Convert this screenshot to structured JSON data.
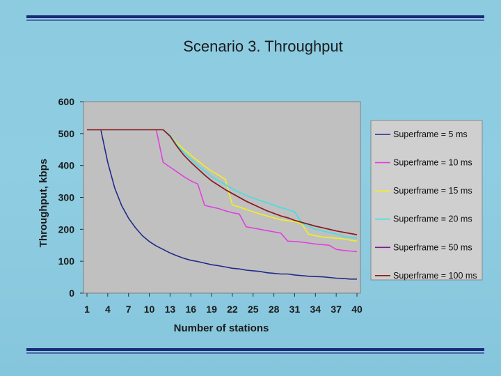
{
  "slide": {
    "title": "Scenario 3. Throughput"
  },
  "colors": {
    "bar": "#1b2a78",
    "plot_bg": "#c0c0c0",
    "legend_bg": "#cfcfcf"
  },
  "chart_data": {
    "type": "line",
    "title": "",
    "xlabel": "Number of stations",
    "ylabel": "Throughput, kbps",
    "xlim": [
      1,
      40
    ],
    "ylim": [
      0,
      600
    ],
    "yticks": [
      "0",
      "100",
      "200",
      "300",
      "400",
      "500",
      "600"
    ],
    "xticks": [
      "1",
      "4",
      "7",
      "10",
      "13",
      "16",
      "19",
      "22",
      "25",
      "28",
      "31",
      "34",
      "37",
      "40"
    ],
    "grid": false,
    "legend_position": "right",
    "series": [
      {
        "name": "Superframe = 5 ms",
        "color": "#1f2a8a",
        "x": [
          1,
          2,
          3,
          4,
          5,
          6,
          7,
          8,
          9,
          10,
          11,
          12,
          13,
          14,
          15,
          16,
          17,
          18,
          19,
          20,
          21,
          22,
          23,
          24,
          25,
          26,
          27,
          28,
          29,
          30,
          31,
          32,
          33,
          34,
          35,
          36,
          37,
          38,
          39,
          40
        ],
        "y": [
          512,
          512,
          512,
          410,
          330,
          275,
          235,
          205,
          180,
          162,
          148,
          137,
          126,
          117,
          109,
          103,
          99,
          94,
          89,
          86,
          82,
          78,
          76,
          72,
          70,
          68,
          64,
          62,
          60,
          60,
          57,
          55,
          53,
          52,
          51,
          49,
          47,
          46,
          44,
          44
        ]
      },
      {
        "name": "Superframe = 10 ms",
        "color": "#e040e0",
        "x": [
          1,
          2,
          3,
          4,
          5,
          6,
          7,
          8,
          9,
          10,
          11,
          12,
          13,
          14,
          15,
          16,
          17,
          18,
          19,
          20,
          21,
          22,
          23,
          24,
          25,
          26,
          27,
          28,
          29,
          30,
          31,
          32,
          33,
          34,
          35,
          36,
          37,
          38,
          39,
          40
        ],
        "y": [
          512,
          512,
          512,
          512,
          512,
          512,
          512,
          512,
          512,
          512,
          512,
          410,
          395,
          380,
          365,
          352,
          342,
          275,
          270,
          265,
          258,
          252,
          248,
          208,
          204,
          200,
          196,
          192,
          188,
          163,
          162,
          160,
          157,
          154,
          152,
          150,
          137,
          134,
          132,
          130
        ]
      },
      {
        "name": "Superframe = 15 ms",
        "color": "#f0f020",
        "x": [
          1,
          2,
          3,
          4,
          5,
          6,
          7,
          8,
          9,
          10,
          11,
          12,
          13,
          14,
          15,
          16,
          17,
          18,
          19,
          20,
          21,
          22,
          23,
          24,
          25,
          26,
          27,
          28,
          29,
          30,
          31,
          32,
          33,
          34,
          35,
          36,
          37,
          38,
          39,
          40
        ],
        "y": [
          512,
          512,
          512,
          512,
          512,
          512,
          512,
          512,
          512,
          512,
          512,
          512,
          495,
          470,
          450,
          432,
          415,
          398,
          382,
          370,
          356,
          276,
          270,
          262,
          255,
          248,
          242,
          236,
          230,
          227,
          224,
          218,
          185,
          180,
          176,
          174,
          172,
          170,
          166,
          163
        ]
      },
      {
        "name": "Superframe = 20 ms",
        "color": "#40e0e0",
        "x": [
          1,
          2,
          3,
          4,
          5,
          6,
          7,
          8,
          9,
          10,
          11,
          12,
          13,
          14,
          15,
          16,
          17,
          18,
          19,
          20,
          21,
          22,
          23,
          24,
          25,
          26,
          27,
          28,
          29,
          30,
          31,
          32,
          33,
          34,
          35,
          36,
          37,
          38,
          39,
          40
        ],
        "y": [
          512,
          512,
          512,
          512,
          512,
          512,
          512,
          512,
          512,
          512,
          512,
          512,
          495,
          465,
          440,
          420,
          400,
          383,
          365,
          352,
          340,
          327,
          316,
          306,
          298,
          290,
          283,
          276,
          268,
          262,
          255,
          220,
          210,
          200,
          195,
          190,
          185,
          178,
          175,
          172
        ]
      },
      {
        "name": "Superframe = 50 ms",
        "color": "#7a1a8a",
        "x": [
          1,
          2,
          3,
          4,
          5,
          6,
          7,
          8,
          9,
          10,
          11,
          12,
          13,
          14,
          15,
          16,
          17,
          18,
          19,
          20,
          21,
          22,
          23,
          24,
          25,
          26,
          27,
          28,
          29,
          30,
          31,
          32,
          33,
          34,
          35,
          36,
          37,
          38,
          39,
          40
        ],
        "y": [
          512,
          512,
          512,
          512,
          512,
          512,
          512,
          512,
          512,
          512,
          512,
          512,
          492,
          460,
          432,
          410,
          390,
          370,
          352,
          338,
          324,
          312,
          300,
          288,
          278,
          268,
          258,
          250,
          242,
          236,
          228,
          222,
          216,
          210,
          205,
          200,
          195,
          191,
          187,
          183
        ]
      },
      {
        "name": "Superframe = 100 ms",
        "color": "#8b1c1c",
        "x": [
          1,
          2,
          3,
          4,
          5,
          6,
          7,
          8,
          9,
          10,
          11,
          12,
          13,
          14,
          15,
          16,
          17,
          18,
          19,
          20,
          21,
          22,
          23,
          24,
          25,
          26,
          27,
          28,
          29,
          30,
          31,
          32,
          33,
          34,
          35,
          36,
          37,
          38,
          39,
          40
        ],
        "y": [
          512,
          512,
          512,
          512,
          512,
          512,
          512,
          512,
          512,
          512,
          512,
          512,
          492,
          460,
          432,
          410,
          390,
          370,
          352,
          338,
          324,
          312,
          300,
          288,
          278,
          268,
          258,
          250,
          242,
          236,
          228,
          222,
          216,
          210,
          205,
          200,
          195,
          191,
          187,
          183
        ]
      }
    ]
  }
}
